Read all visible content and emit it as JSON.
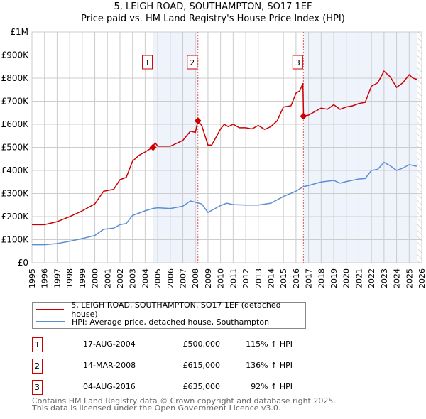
{
  "chart_data": {
    "type": "line",
    "title": "5, LEIGH ROAD, SOUTHAMPTON, SO17 1EF",
    "subtitle": "Price paid vs. HM Land Registry's House Price Index (HPI)",
    "xlim": [
      1995,
      2026
    ],
    "ylim": [
      0,
      1000000
    ],
    "x_ticks": [
      "1995",
      "1996",
      "1997",
      "1998",
      "1999",
      "2000",
      "2001",
      "2002",
      "2003",
      "2004",
      "2005",
      "2006",
      "2007",
      "2008",
      "2009",
      "2010",
      "2011",
      "2012",
      "2013",
      "2014",
      "2015",
      "2016",
      "2017",
      "2018",
      "2019",
      "2020",
      "2021",
      "2022",
      "2023",
      "2024",
      "2025",
      "2026"
    ],
    "y_ticks": [
      {
        "v": 0,
        "label": "£0"
      },
      {
        "v": 100000,
        "label": "£100K"
      },
      {
        "v": 200000,
        "label": "£200K"
      },
      {
        "v": 300000,
        "label": "£300K"
      },
      {
        "v": 400000,
        "label": "£400K"
      },
      {
        "v": 500000,
        "label": "£500K"
      },
      {
        "v": 600000,
        "label": "£600K"
      },
      {
        "v": 700000,
        "label": "£700K"
      },
      {
        "v": 800000,
        "label": "£800K"
      },
      {
        "v": 900000,
        "label": "£900K"
      },
      {
        "v": 1000000,
        "label": "£1M"
      }
    ],
    "grid": true,
    "series": [
      {
        "name": "5, LEIGH ROAD, SOUTHAMPTON, SO17 1EF (detached house)",
        "color": "#cc0000",
        "x": [
          1995,
          1996,
          1997,
          1998,
          1999,
          2000,
          2000.7,
          2001.5,
          2002,
          2002.5,
          2003,
          2003.5,
          2004,
          2004.6,
          2004.8,
          2005,
          2006,
          2007,
          2007.6,
          2008,
          2008.2,
          2008.5,
          2009,
          2009.3,
          2010,
          2010.3,
          2010.6,
          2011,
          2011.5,
          2012,
          2012.5,
          2013,
          2013.5,
          2014,
          2014.5,
          2015,
          2015.6,
          2016,
          2016.3,
          2016.55,
          2016.6,
          2017,
          2017.5,
          2018,
          2018.5,
          2019,
          2019.5,
          2020,
          2020.5,
          2021,
          2021.5,
          2022,
          2022.5,
          2023,
          2023.5,
          2024,
          2024.5,
          2025,
          2025.3,
          2025.6
        ],
        "y": [
          165,
          165,
          178,
          200,
          225,
          255,
          310,
          318,
          360,
          370,
          440,
          465,
          480,
          500,
          520,
          505,
          505,
          530,
          570,
          565,
          615,
          595,
          510,
          510,
          580,
          600,
          590,
          600,
          585,
          585,
          580,
          595,
          578,
          590,
          615,
          675,
          680,
          735,
          745,
          778,
          635,
          640,
          655,
          670,
          665,
          685,
          665,
          675,
          680,
          690,
          695,
          765,
          780,
          830,
          805,
          760,
          780,
          815,
          800,
          795
        ]
      },
      {
        "name": "HPI: Average price, detached house, Southampton",
        "color": "#5b8fd4",
        "x": [
          1995,
          1996,
          1997,
          1998,
          1999,
          2000,
          2000.7,
          2001.5,
          2002,
          2002.5,
          2003,
          2004,
          2004.6,
          2005,
          2006,
          2007,
          2007.6,
          2008.5,
          2009,
          2010,
          2010.5,
          2011,
          2012,
          2013,
          2014,
          2015,
          2016,
          2016.6,
          2017,
          2018,
          2019,
          2019.5,
          2020,
          2021,
          2021.5,
          2022,
          2022.5,
          2023,
          2023.5,
          2024,
          2024.5,
          2025,
          2025.6
        ],
        "y": [
          78,
          78,
          83,
          93,
          105,
          118,
          145,
          150,
          165,
          170,
          205,
          225,
          235,
          238,
          235,
          245,
          268,
          255,
          218,
          248,
          258,
          252,
          250,
          250,
          258,
          287,
          310,
          330,
          335,
          350,
          357,
          345,
          352,
          363,
          365,
          400,
          405,
          435,
          420,
          400,
          410,
          425,
          418
        ]
      }
    ],
    "y_units": "£ thousands",
    "sales": [
      {
        "n": "1",
        "x": 2004.63,
        "price": 500,
        "date": "17-AUG-2004",
        "price_label": "£500,000",
        "hpi": "115% ↑ HPI"
      },
      {
        "n": "2",
        "x": 2008.2,
        "price": 615,
        "date": "14-MAR-2008",
        "price_label": "£615,000",
        "hpi": "136% ↑ HPI"
      },
      {
        "n": "3",
        "x": 2016.59,
        "price": 635,
        "date": "04-AUG-2016",
        "price_label": "£635,000",
        "hpi": "92% ↑ HPI"
      }
    ],
    "shaded": [
      [
        2004.63,
        2008.2
      ],
      [
        2016.59,
        2025.6
      ]
    ],
    "hatch_from": 2025.6,
    "legend_position": "bottom"
  },
  "footer": [
    "Contains HM Land Registry data © Crown copyright and database right 2025.",
    "This data is licensed under the Open Government Licence v3.0."
  ]
}
